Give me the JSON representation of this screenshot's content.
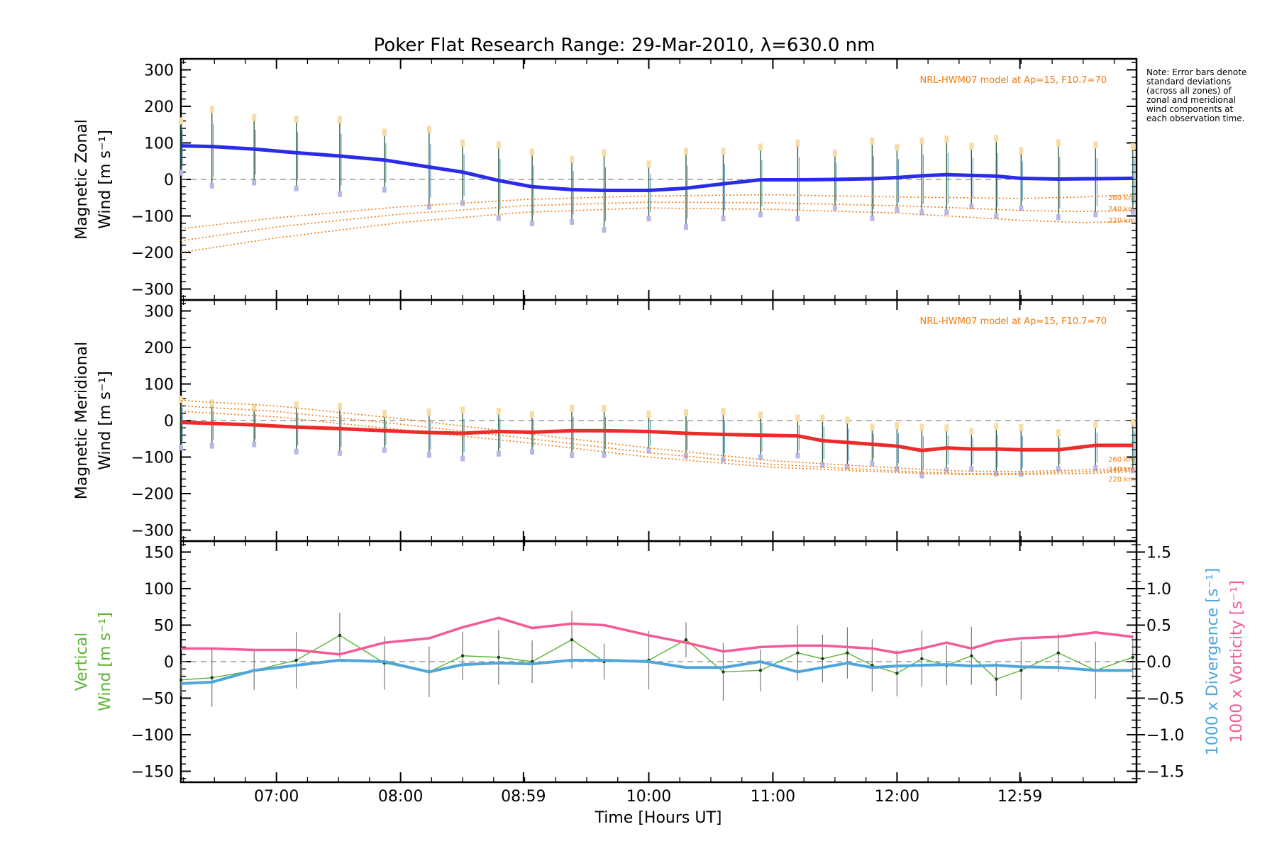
{
  "chart_data": [
    {
      "type": "line",
      "panel": "zonal",
      "title": "Poker Flat Research Range: 29-Mar-2010, λ=630.0 nm",
      "ylabel_line1": "Magnetic Zonal",
      "ylabel_line2": "Wind [m s⁻¹]",
      "ylim": [
        -330,
        330
      ],
      "yticks": [
        -300,
        -200,
        -100,
        0,
        100,
        200,
        300
      ],
      "model_label": "NRL-HWM07 model at Ap=15, F10.7=70",
      "altitude_labels": [
        "260 km",
        "240 km",
        "220 km"
      ],
      "note": "Note: Error bars denote standard deviations (across all zones) of zonal and meridional wind components at each observation time.",
      "series": [
        {
          "name": "Mean magnetic zonal wind",
          "color": "#2b2bea",
          "x": [
            6.23,
            6.48,
            6.82,
            7.16,
            7.51,
            7.87,
            8.23,
            8.5,
            8.79,
            9.06,
            9.38,
            9.64,
            10.0,
            10.3,
            10.6,
            10.9,
            11.2,
            11.5,
            11.8,
            12.0,
            12.2,
            12.4,
            12.6,
            12.8,
            13.0,
            13.3,
            13.6,
            13.9
          ],
          "y": [
            92,
            90,
            83,
            73,
            64,
            53,
            34,
            20,
            -3,
            -20,
            -28,
            -30,
            -30,
            -24,
            -12,
            -1,
            -1,
            0,
            2,
            5,
            10,
            13,
            11,
            9,
            3,
            1,
            2,
            3
          ]
        },
        {
          "name": "HWM07 260 km",
          "color": "#f07a10",
          "x": [
            6.23,
            7.0,
            8.0,
            9.0,
            10.0,
            11.0,
            12.0,
            12.5,
            13.0,
            13.5,
            13.9
          ],
          "y": [
            -135,
            -105,
            -75,
            -55,
            -45,
            -42,
            -48,
            -50,
            -52,
            -48,
            -42
          ]
        },
        {
          "name": "HWM07 240 km",
          "color": "#f07a10",
          "x": [
            6.23,
            7.0,
            8.0,
            9.0,
            10.0,
            11.0,
            12.0,
            12.5,
            13.0,
            13.5,
            13.9
          ],
          "y": [
            -168,
            -130,
            -95,
            -72,
            -62,
            -64,
            -72,
            -78,
            -85,
            -88,
            -85
          ]
        },
        {
          "name": "HWM07 220 km",
          "color": "#f07a10",
          "x": [
            6.23,
            7.0,
            8.0,
            9.0,
            10.0,
            11.0,
            12.0,
            12.5,
            13.0,
            13.5,
            13.9
          ],
          "y": [
            -200,
            -160,
            -118,
            -90,
            -78,
            -82,
            -92,
            -102,
            -112,
            -118,
            -115
          ]
        }
      ]
    },
    {
      "type": "line",
      "panel": "meridional",
      "ylabel_line1": "Magnetic Meridional",
      "ylabel_line2": "Wind [m s⁻¹]",
      "ylim": [
        -330,
        330
      ],
      "yticks": [
        -300,
        -200,
        -100,
        0,
        100,
        200,
        300
      ],
      "model_label": "NRL-HWM07 model at Ap=15, F10.7=70",
      "altitude_labels": [
        "260 km",
        "240 km",
        "220 km"
      ],
      "series": [
        {
          "name": "Mean magnetic meridional wind",
          "color": "#ee2a2a",
          "x": [
            6.23,
            6.48,
            6.82,
            7.16,
            7.51,
            7.87,
            8.23,
            8.5,
            8.79,
            9.06,
            9.38,
            9.64,
            10.0,
            10.3,
            10.6,
            10.9,
            11.2,
            11.4,
            11.6,
            11.8,
            12.0,
            12.2,
            12.4,
            12.6,
            12.8,
            13.0,
            13.3,
            13.6,
            13.9
          ],
          "y": [
            -5,
            -8,
            -12,
            -18,
            -22,
            -28,
            -33,
            -35,
            -30,
            -32,
            -28,
            -28,
            -30,
            -35,
            -38,
            -40,
            -42,
            -55,
            -60,
            -65,
            -70,
            -82,
            -75,
            -78,
            -78,
            -80,
            -80,
            -68,
            -68
          ]
        },
        {
          "name": "HWM07 260 km",
          "color": "#f07a10",
          "x": [
            6.23,
            7.0,
            8.0,
            9.0,
            10.0,
            11.0,
            12.0,
            12.5,
            13.0,
            13.5,
            13.9
          ],
          "y": [
            55,
            40,
            5,
            -35,
            -75,
            -110,
            -130,
            -138,
            -140,
            -135,
            -130
          ]
        },
        {
          "name": "HWM07 240 km",
          "color": "#f07a10",
          "x": [
            6.23,
            7.0,
            8.0,
            9.0,
            10.0,
            11.0,
            12.0,
            12.5,
            13.0,
            13.5,
            13.9
          ],
          "y": [
            40,
            25,
            -10,
            -48,
            -88,
            -120,
            -138,
            -145,
            -145,
            -140,
            -135
          ]
        },
        {
          "name": "HWM07 220 km",
          "color": "#f07a10",
          "x": [
            6.23,
            7.0,
            8.0,
            9.0,
            10.0,
            11.0,
            12.0,
            12.5,
            13.0,
            13.5,
            13.9
          ],
          "y": [
            25,
            10,
            -25,
            -60,
            -100,
            -128,
            -142,
            -148,
            -148,
            -145,
            -140
          ]
        }
      ]
    },
    {
      "type": "line",
      "panel": "vertical",
      "ylabel_line1": "Vertical",
      "ylabel_line2": "Wind [m s⁻¹]",
      "ylim": [
        -165,
        165
      ],
      "yticks": [
        -150,
        -100,
        -50,
        0,
        50,
        100,
        150
      ],
      "y2lim": [
        -1.65,
        1.65
      ],
      "y2ticks": [
        "-1.5",
        "-1.0",
        "-0.5",
        "0.0",
        "0.5",
        "1.0",
        "1.5"
      ],
      "y2label_divergence": "1000 x Divergence [s⁻¹]",
      "y2label_vorticity": "1000 x Vorticity [s⁻¹]",
      "xlabel": "Time [Hours UT]",
      "xticks": [
        "07:00",
        "08:00",
        "08:59",
        "10:00",
        "11:00",
        "12:00",
        "12:59"
      ],
      "series": [
        {
          "name": "Vertical wind",
          "color": "#5ab432",
          "axis": "left",
          "x": [
            6.23,
            6.48,
            6.82,
            7.16,
            7.51,
            7.87,
            8.23,
            8.5,
            8.79,
            9.06,
            9.38,
            9.64,
            10.0,
            10.3,
            10.6,
            10.9,
            11.2,
            11.4,
            11.6,
            11.8,
            12.0,
            12.2,
            12.4,
            12.6,
            12.8,
            13.0,
            13.3,
            13.6,
            13.9
          ],
          "y": [
            -25,
            -22,
            -12,
            2,
            36,
            -2,
            -14,
            8,
            6,
            0,
            30,
            0,
            2,
            30,
            -14,
            -12,
            12,
            4,
            12,
            -5,
            -16,
            4,
            -5,
            8,
            -24,
            -12,
            12,
            -12,
            6
          ]
        },
        {
          "name": "1000 x Divergence",
          "color": "#4ea6dc",
          "axis": "right",
          "x": [
            6.23,
            6.48,
            6.82,
            7.16,
            7.51,
            7.87,
            8.23,
            8.5,
            8.79,
            9.06,
            9.38,
            9.64,
            10.0,
            10.3,
            10.6,
            10.9,
            11.2,
            11.4,
            11.6,
            11.8,
            12.0,
            12.2,
            12.4,
            12.6,
            12.8,
            13.0,
            13.3,
            13.6,
            13.9
          ],
          "y": [
            -0.3,
            -0.28,
            -0.12,
            -0.05,
            0.02,
            0.0,
            -0.14,
            -0.04,
            -0.02,
            -0.03,
            0.02,
            0.02,
            0.0,
            -0.08,
            -0.08,
            0.0,
            -0.14,
            -0.08,
            -0.02,
            -0.08,
            -0.06,
            -0.05,
            -0.04,
            -0.06,
            -0.05,
            -0.07,
            -0.08,
            -0.12,
            -0.12
          ]
        },
        {
          "name": "1000 x Vorticity",
          "color": "#f45a96",
          "axis": "right",
          "x": [
            6.23,
            6.48,
            6.82,
            7.16,
            7.51,
            7.87,
            8.23,
            8.5,
            8.79,
            9.06,
            9.38,
            9.64,
            10.0,
            10.3,
            10.6,
            10.9,
            11.2,
            11.4,
            11.6,
            11.8,
            12.0,
            12.2,
            12.4,
            12.6,
            12.8,
            13.0,
            13.3,
            13.6,
            13.9
          ],
          "y": [
            0.18,
            0.18,
            0.16,
            0.16,
            0.1,
            0.26,
            0.32,
            0.47,
            0.6,
            0.46,
            0.52,
            0.5,
            0.36,
            0.26,
            0.14,
            0.2,
            0.22,
            0.22,
            0.2,
            0.18,
            0.12,
            0.18,
            0.26,
            0.18,
            0.28,
            0.32,
            0.34,
            0.4,
            0.34
          ]
        }
      ]
    }
  ]
}
